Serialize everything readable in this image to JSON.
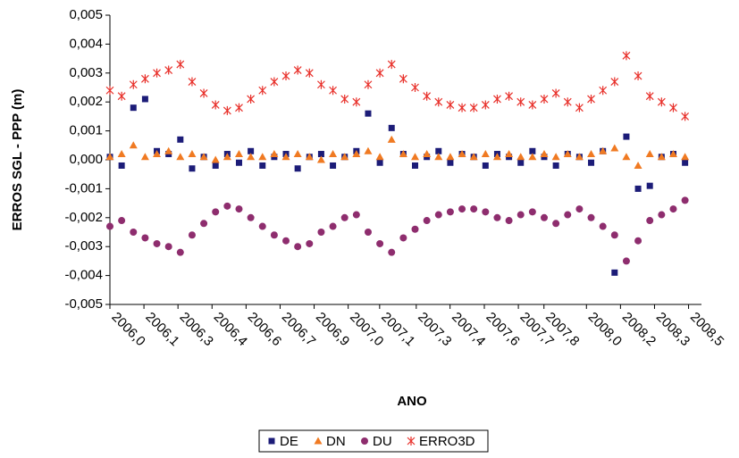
{
  "chart_data": {
    "type": "scatter",
    "y_label": "ERROS SGL - PPP (m)",
    "x_label": "ANO",
    "xlim": [
      2006.0,
      2008.52
    ],
    "xticks": [
      {
        "value": 2006.0,
        "label": "2006,0"
      },
      {
        "value": 2006.145,
        "label": "2006,1"
      },
      {
        "value": 2006.29,
        "label": "2006,3"
      },
      {
        "value": 2006.435,
        "label": "2006,4"
      },
      {
        "value": 2006.58,
        "label": "2006,6"
      },
      {
        "value": 2006.725,
        "label": "2006,7"
      },
      {
        "value": 2006.87,
        "label": "2006,9"
      },
      {
        "value": 2007.015,
        "label": "2007,0"
      },
      {
        "value": 2007.149,
        "label": "2007,1"
      },
      {
        "value": 2007.305,
        "label": "2007,3"
      },
      {
        "value": 2007.449,
        "label": "2007,4"
      },
      {
        "value": 2007.595,
        "label": "2007,6"
      },
      {
        "value": 2007.74,
        "label": "2007,7"
      },
      {
        "value": 2007.849,
        "label": "2007,8"
      },
      {
        "value": 2008.03,
        "label": "2008,0"
      },
      {
        "value": 2008.175,
        "label": "2008,2"
      },
      {
        "value": 2008.32,
        "label": "2008,3"
      },
      {
        "value": 2008.465,
        "label": "2008,5"
      }
    ],
    "ylim": [
      -0.005,
      0.005
    ],
    "yticks": [
      {
        "value": -0.005,
        "label": "-0,005"
      },
      {
        "value": -0.004,
        "label": "-0,004"
      },
      {
        "value": -0.003,
        "label": "-0,003"
      },
      {
        "value": -0.002,
        "label": "-0,002"
      },
      {
        "value": -0.001,
        "label": "-0,001"
      },
      {
        "value": 0,
        "label": "0,000"
      },
      {
        "value": 0.001,
        "label": "0,001"
      },
      {
        "value": 0.002,
        "label": "0,002"
      },
      {
        "value": 0.003,
        "label": "0,003"
      },
      {
        "value": 0.004,
        "label": "0,004"
      },
      {
        "value": 0.005,
        "label": "0,005"
      }
    ],
    "x": [
      2006.0,
      2006.05,
      2006.1,
      2006.15,
      2006.2,
      2006.25,
      2006.3,
      2006.35,
      2006.4,
      2006.45,
      2006.5,
      2006.55,
      2006.6,
      2006.65,
      2006.7,
      2006.75,
      2006.8,
      2006.85,
      2006.9,
      2006.95,
      2007.0,
      2007.05,
      2007.1,
      2007.15,
      2007.2,
      2007.25,
      2007.3,
      2007.35,
      2007.4,
      2007.45,
      2007.5,
      2007.55,
      2007.6,
      2007.65,
      2007.7,
      2007.75,
      2007.8,
      2007.85,
      2007.9,
      2007.95,
      2008.0,
      2008.05,
      2008.1,
      2008.15,
      2008.2,
      2008.25,
      2008.3,
      2008.35,
      2008.4,
      2008.45
    ],
    "series": [
      {
        "name": "DE",
        "color": "#1c1c78",
        "marker": "square",
        "values": [
          0.0001,
          -0.0002,
          0.0018,
          0.0021,
          0.0003,
          0.0002,
          0.0007,
          -0.0003,
          0.0001,
          -0.0002,
          0.0002,
          -0.0001,
          0.0003,
          -0.0002,
          0.0001,
          0.0002,
          -0.0003,
          0.0001,
          0.0002,
          -0.0002,
          0.0001,
          0.0003,
          0.0016,
          -0.0001,
          0.0011,
          0.0002,
          -0.0002,
          0.0001,
          0.0003,
          -0.0001,
          0.0002,
          0.0001,
          -0.0002,
          0.0002,
          0.0001,
          -0.0001,
          0.0003,
          0.0001,
          -0.0002,
          0.0002,
          0.0001,
          -0.0001,
          0.0003,
          -0.0039,
          0.0008,
          -0.001,
          -0.0009,
          0.0001,
          0.0002,
          -0.0001
        ]
      },
      {
        "name": "DN",
        "color": "#f07a22",
        "marker": "triangle",
        "values": [
          0.0001,
          0.0002,
          0.0005,
          0.0001,
          0.0002,
          0.0003,
          0.0001,
          0.0002,
          0.0001,
          0.0,
          0.0001,
          0.0002,
          0.0001,
          0.0001,
          0.0002,
          0.0001,
          0.0002,
          0.0001,
          0.0,
          0.0002,
          0.0001,
          0.0002,
          0.0003,
          0.0001,
          0.0007,
          0.0002,
          0.0001,
          0.0002,
          0.0001,
          0.0001,
          0.0002,
          0.0001,
          0.0002,
          0.0001,
          0.0002,
          0.0001,
          0.0001,
          0.0002,
          0.0001,
          0.0002,
          0.0001,
          0.0002,
          0.0003,
          0.0004,
          0.0001,
          -0.0002,
          0.0002,
          0.0001,
          0.0002,
          0.0001
        ]
      },
      {
        "name": "DU",
        "color": "#8e2d6e",
        "marker": "circle",
        "values": [
          -0.0023,
          -0.0021,
          -0.0025,
          -0.0027,
          -0.0029,
          -0.003,
          -0.0032,
          -0.0026,
          -0.0022,
          -0.0018,
          -0.0016,
          -0.0017,
          -0.002,
          -0.0023,
          -0.0026,
          -0.0028,
          -0.003,
          -0.0029,
          -0.0025,
          -0.0023,
          -0.002,
          -0.0019,
          -0.0025,
          -0.0029,
          -0.0032,
          -0.0027,
          -0.0024,
          -0.0021,
          -0.0019,
          -0.0018,
          -0.0017,
          -0.0017,
          -0.0018,
          -0.002,
          -0.0021,
          -0.0019,
          -0.0018,
          -0.002,
          -0.0022,
          -0.0019,
          -0.0017,
          -0.002,
          -0.0023,
          -0.0026,
          -0.0035,
          -0.0028,
          -0.0021,
          -0.0019,
          -0.0017,
          -0.0014
        ]
      },
      {
        "name": "ERRO3D",
        "color": "#e8302a",
        "marker": "asterisk",
        "values": [
          0.0024,
          0.0022,
          0.0026,
          0.0028,
          0.003,
          0.0031,
          0.0033,
          0.0027,
          0.0023,
          0.0019,
          0.0017,
          0.0018,
          0.0021,
          0.0024,
          0.0027,
          0.0029,
          0.0031,
          0.003,
          0.0026,
          0.0024,
          0.0021,
          0.002,
          0.0026,
          0.003,
          0.0033,
          0.0028,
          0.0025,
          0.0022,
          0.002,
          0.0019,
          0.0018,
          0.0018,
          0.0019,
          0.0021,
          0.0022,
          0.002,
          0.0019,
          0.0021,
          0.0023,
          0.002,
          0.0018,
          0.0021,
          0.0024,
          0.0027,
          0.0036,
          0.0029,
          0.0022,
          0.002,
          0.0018,
          0.0015
        ]
      }
    ],
    "legend": "bottom"
  }
}
